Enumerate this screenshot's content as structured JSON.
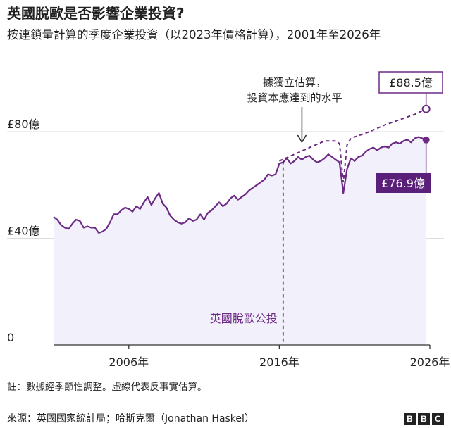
{
  "header": {
    "title": "英國脫歐是否影響企業投資?",
    "subtitle": "按連鎖量計算的季度企業投資（以2023年價格計算），2001年至2026年"
  },
  "footer": {
    "note": "註：數據經季節性調整。虛線代表反事實估算。",
    "source": "來源：英國國家統計局；哈斯克爾（Jonathan Haskel）",
    "logo_letters": [
      "B",
      "B",
      "C"
    ]
  },
  "colors": {
    "actual_line": "#6c2a85",
    "actual_fill": "#f2f0fb",
    "counterfactual_line": "#6c2a85",
    "label_box_fill": "#5a1f78",
    "gridline": "#dddddd",
    "axis": "#333333"
  },
  "chart_data": {
    "type": "line",
    "xlim": [
      2001.0,
      2026.0
    ],
    "ylim": [
      0,
      80
    ],
    "y_ticks": [
      {
        "value": 0,
        "label": "0"
      },
      {
        "value": 40,
        "label": "£40億"
      },
      {
        "value": 80,
        "label": "£80億"
      }
    ],
    "x_ticks": [
      {
        "value": 2006,
        "label": "2006年"
      },
      {
        "value": 2016,
        "label": "2016年"
      },
      {
        "value": 2026,
        "label": "2026年"
      }
    ],
    "grid": true,
    "series": [
      {
        "style": "solid",
        "x": [
          2001.0,
          2001.25,
          2001.5,
          2001.75,
          2002.0,
          2002.25,
          2002.5,
          2002.75,
          2003.0,
          2003.25,
          2003.5,
          2003.75,
          2004.0,
          2004.25,
          2004.5,
          2004.75,
          2005.0,
          2005.25,
          2005.5,
          2005.75,
          2006.0,
          2006.25,
          2006.5,
          2006.75,
          2007.0,
          2007.25,
          2007.5,
          2007.75,
          2008.0,
          2008.25,
          2008.5,
          2008.75,
          2009.0,
          2009.25,
          2009.5,
          2009.75,
          2010.0,
          2010.25,
          2010.5,
          2010.75,
          2011.0,
          2011.25,
          2011.5,
          2011.75,
          2012.0,
          2012.25,
          2012.5,
          2012.75,
          2013.0,
          2013.25,
          2013.5,
          2013.75,
          2014.0,
          2014.25,
          2014.5,
          2014.75,
          2015.0,
          2015.25,
          2015.5,
          2015.75,
          2016.0,
          2016.25,
          2016.5,
          2016.75,
          2017.0,
          2017.25,
          2017.5,
          2017.75,
          2018.0,
          2018.25,
          2018.5,
          2018.75,
          2019.0,
          2019.25,
          2019.5,
          2019.75,
          2020.0,
          2020.25,
          2020.5,
          2020.75,
          2021.0,
          2021.25,
          2021.5,
          2021.75,
          2022.0,
          2022.25,
          2022.5,
          2022.75,
          2023.0,
          2023.25,
          2023.5,
          2023.75,
          2024.0,
          2024.25,
          2024.5,
          2024.75,
          2025.0,
          2025.25,
          2025.5,
          2025.75
        ],
        "values": [
          48.0,
          47.0,
          45.0,
          44.0,
          43.5,
          45.5,
          47.0,
          46.5,
          44.0,
          44.5,
          44.0,
          44.0,
          42.0,
          42.5,
          43.5,
          46.0,
          49.0,
          49.0,
          50.5,
          51.5,
          51.0,
          50.0,
          52.0,
          51.0,
          53.5,
          55.5,
          52.5,
          55.0,
          57.0,
          53.0,
          51.5,
          48.5,
          47.0,
          46.0,
          45.5,
          46.0,
          47.5,
          46.5,
          47.0,
          49.0,
          47.0,
          49.5,
          50.5,
          52.0,
          53.5,
          52.0,
          53.0,
          55.0,
          56.0,
          54.5,
          55.5,
          56.5,
          58.0,
          59.0,
          60.0,
          61.0,
          62.0,
          64.0,
          63.5,
          64.0,
          68.0,
          68.5,
          70.0,
          68.0,
          69.0,
          70.5,
          69.5,
          70.5,
          71.0,
          69.5,
          68.5,
          69.0,
          70.0,
          71.5,
          70.5,
          69.5,
          68.5,
          57.0,
          66.0,
          70.0,
          69.0,
          70.5,
          71.0,
          72.5,
          73.5,
          74.0,
          73.0,
          74.0,
          74.5,
          74.0,
          75.5,
          76.0,
          75.5,
          76.5,
          77.0,
          76.0,
          77.5,
          78.0,
          77.5,
          76.9
        ]
      },
      {
        "style": "dashed",
        "x": [
          2016.0,
          2017.0,
          2018.0,
          2019.0,
          2019.75,
          2020.0,
          2020.25,
          2020.5,
          2020.75,
          2021.0,
          2022.0,
          2023.0,
          2024.0,
          2025.0,
          2025.75
        ],
        "values": [
          69.0,
          71.5,
          74.0,
          76.5,
          76.5,
          75.5,
          61.0,
          75.0,
          77.5,
          78.0,
          80.0,
          82.5,
          84.5,
          86.5,
          88.5
        ]
      }
    ],
    "annotations": {
      "referendum_label": "英國脫歐公投",
      "referendum_x": 2016.25,
      "counterfactual_note_line1": "據獨立估算，",
      "counterfactual_note_line2": "投資本應達到的水平",
      "counterfactual_arrow_x": 2017.5,
      "counterfactual_end_label": "£88.5億",
      "actual_end_label": "£76.9億"
    }
  }
}
